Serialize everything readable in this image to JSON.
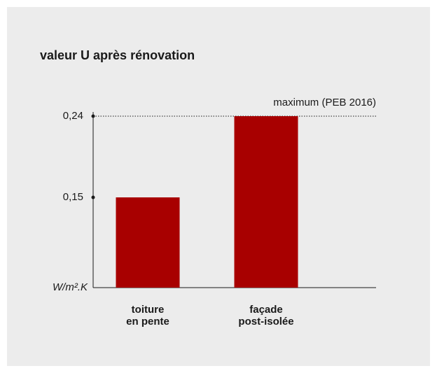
{
  "chart_data": {
    "type": "bar",
    "title": "valeur U après rénovation",
    "y_axis_label": "W/m².K",
    "categories": [
      [
        "toiture",
        "en pente"
      ],
      [
        "façade",
        "post-isolée"
      ]
    ],
    "values": [
      0.15,
      0.24
    ],
    "color": "#a80000",
    "ylim": [
      0.05,
      0.24
    ],
    "yticks": [
      {
        "value": 0.15,
        "label": "0,15"
      },
      {
        "value": 0.24,
        "label": "0,24"
      }
    ],
    "reference_line": {
      "value": 0.24,
      "label": "maximum (PEB 2016)"
    }
  }
}
